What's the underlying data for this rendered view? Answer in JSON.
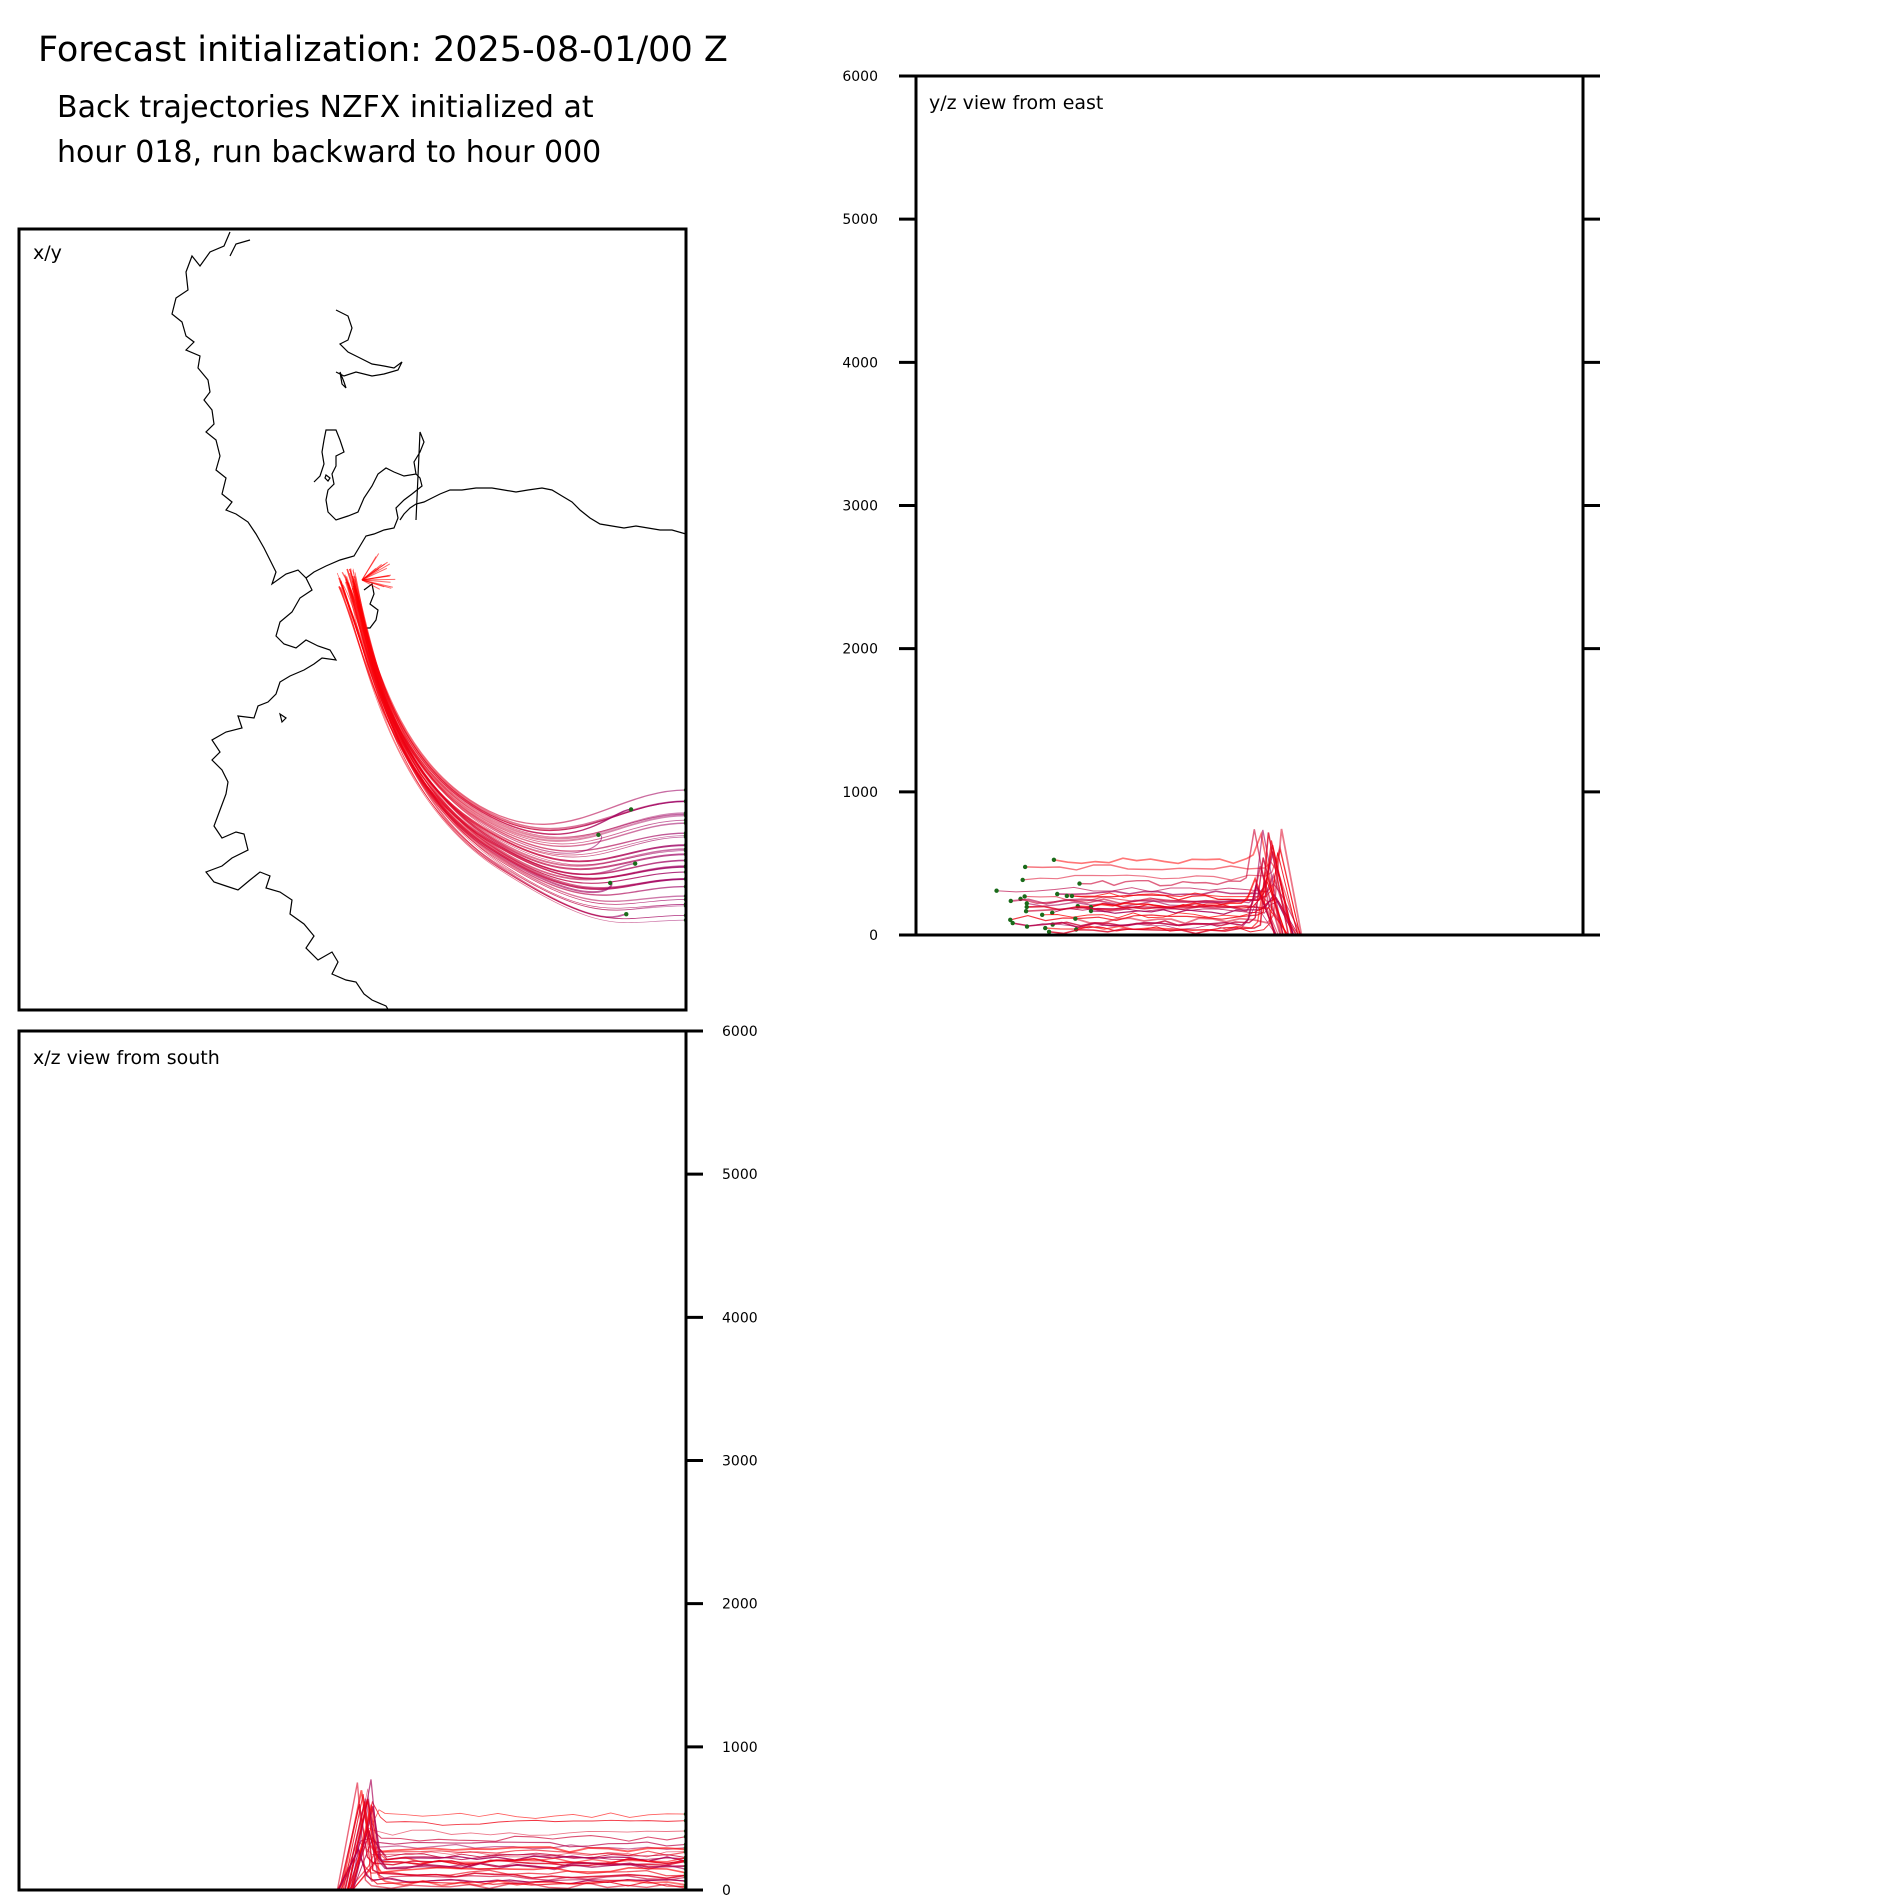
{
  "header": {
    "title": "Forecast initialization: 2025-08-01/00 Z",
    "subtitle_line1": "Back trajectories NZFX initialized at",
    "subtitle_line2": "hour 018, run backward to hour 000"
  },
  "colors": {
    "trajectory_start": "#ff0000",
    "trajectory_end": "#990066",
    "endpoint_marker": "#1a6b1a",
    "coastline": "#000000",
    "axes": "#000000"
  },
  "chart_data": [
    {
      "panel": "map",
      "type": "line",
      "label": "x/y",
      "description_kind": "trajectory paths on coastline map",
      "ticks": false,
      "grid": false
    },
    {
      "panel": "side-east",
      "type": "line",
      "label": "y/z view from east",
      "ylim": [
        0,
        6000
      ],
      "yticks": [
        "0",
        "1000",
        "2000",
        "3000",
        "4000",
        "5000",
        "6000"
      ],
      "tick_side": "left",
      "grid": false
    },
    {
      "panel": "side-south",
      "type": "line",
      "label": "x/z view from south",
      "ylim": [
        0,
        6000
      ],
      "yticks": [
        "0",
        "1000",
        "2000",
        "3000",
        "4000",
        "5000",
        "6000"
      ],
      "tick_side": "right",
      "grid": false
    }
  ]
}
